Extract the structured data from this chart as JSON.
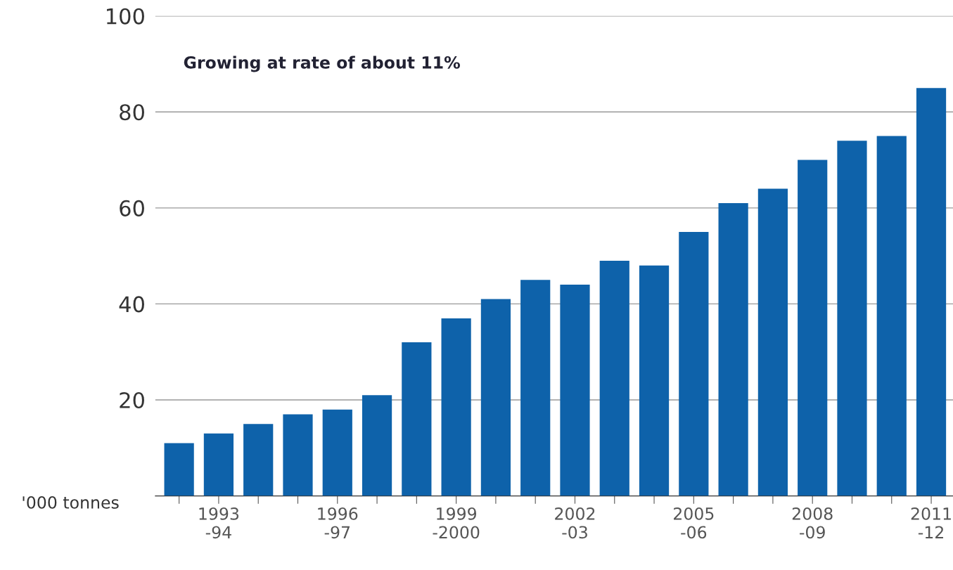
{
  "chart_data": {
    "type": "bar",
    "categories": [
      null,
      "1993\n-94",
      null,
      null,
      "1996\n-97",
      null,
      null,
      "1999\n-2000",
      null,
      null,
      "2002\n-03",
      null,
      null,
      "2005\n-06",
      null,
      null,
      "2008\n-09",
      null,
      null,
      "2011\n-12"
    ],
    "values": [
      11,
      13,
      15,
      17,
      18,
      21,
      32,
      37,
      41,
      45,
      44,
      49,
      48,
      55,
      61,
      64,
      70,
      74,
      75,
      85
    ],
    "color": "#0e62aa",
    "ylim": [
      0,
      100
    ],
    "yticks": [
      {
        "value": 0,
        "label": null
      },
      20,
      40,
      60,
      80,
      100
    ],
    "ylabel": "'000 tonnes",
    "grid": "y",
    "annotations": [
      "Growing at rate of about 11%"
    ]
  }
}
